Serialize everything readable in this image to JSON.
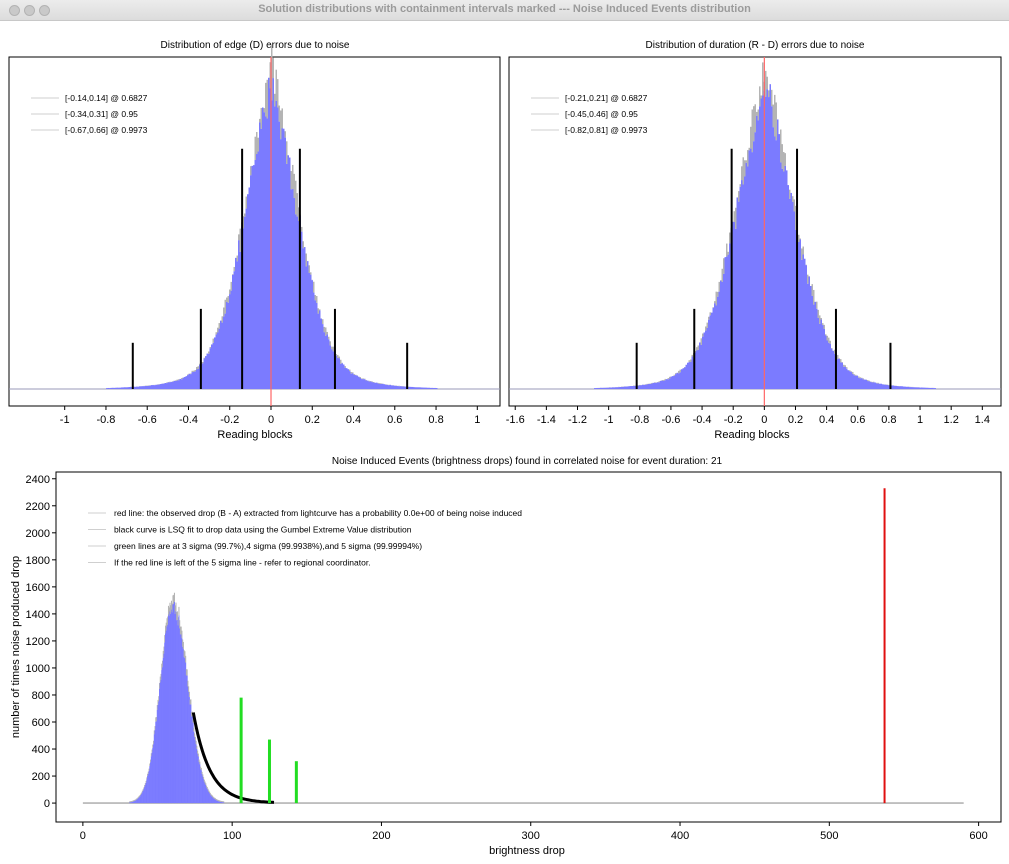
{
  "window": {
    "title": "Solution distributions with containment intervals marked --- Noise Induced Events distribution"
  },
  "colors": {
    "hist_fill": "#7b7bff",
    "hist_outline": "#b4b4b4",
    "zero_line": "#ff6666",
    "interval_line": "#000000",
    "observed_line": "#e01010",
    "sigma_line": "#22dd22",
    "fit_curve": "#000000"
  },
  "chart_data": [
    {
      "type": "bar",
      "title": "Distribution of edge (D) errors due to noise",
      "xlabel": "Reading blocks",
      "ylabel": "",
      "xlim": [
        -1.27,
        1.11
      ],
      "x_ticks": [
        -1,
        -0.8,
        -0.6,
        -0.4,
        -0.2,
        0,
        0.2,
        0.4,
        0.6,
        0.8,
        1
      ],
      "x_tick_labels": [
        "-1",
        "-0.8",
        "-0.6",
        "-0.4",
        "-0.2",
        "0",
        "0.2",
        "0.4",
        "0.6",
        "0.8",
        "1"
      ],
      "distribution": {
        "center": 0.0,
        "core_width": 0.14,
        "tail_decay": 0.16,
        "peak": 1.0
      },
      "zero_line_x": 0,
      "intervals": [
        {
          "lower": -0.14,
          "upper": 0.14,
          "height": 0.78
        },
        {
          "lower": -0.34,
          "upper": 0.31,
          "height": 0.26
        },
        {
          "lower": -0.67,
          "upper": 0.66,
          "height": 0.15
        }
      ],
      "legend": {
        "placement": "top-left",
        "entries": [
          "[-0.14,0.14] @ 0.6827",
          "[-0.34,0.31] @ 0.95",
          "[-0.67,0.66] @ 0.9973"
        ]
      }
    },
    {
      "type": "bar",
      "title": "Distribution of duration (R - D) errors due to noise",
      "xlabel": "Reading blocks",
      "ylabel": "",
      "xlim": [
        -1.64,
        1.52
      ],
      "x_ticks": [
        -1.6,
        -1.4,
        -1.2,
        -1,
        -0.8,
        -0.6,
        -0.4,
        -0.2,
        0,
        0.2,
        0.4,
        0.6,
        0.8,
        1,
        1.2,
        1.4
      ],
      "x_tick_labels": [
        "-1.6",
        "-1.4",
        "-1.2",
        "-1",
        "-0.8",
        "-0.6",
        "-0.4",
        "-0.2",
        "0",
        "0.2",
        "0.4",
        "0.6",
        "0.8",
        "1",
        "1.2",
        "1.4"
      ],
      "distribution": {
        "center": 0.0,
        "core_width": 0.21,
        "tail_decay": 0.22,
        "peak": 1.0
      },
      "zero_line_x": 0,
      "intervals": [
        {
          "lower": -0.21,
          "upper": 0.21,
          "height": 0.78
        },
        {
          "lower": -0.45,
          "upper": 0.46,
          "height": 0.26
        },
        {
          "lower": -0.82,
          "upper": 0.81,
          "height": 0.15
        }
      ],
      "legend": {
        "placement": "top-left",
        "entries": [
          "[-0.21,0.21] @ 0.6827",
          "[-0.45,0.46] @ 0.95",
          "[-0.82,0.81] @ 0.9973"
        ]
      }
    },
    {
      "type": "bar",
      "title": "Noise Induced Events (brightness drops) found in correlated noise for event duration: 21",
      "xlabel": "brightness drop",
      "ylabel": "number of times noise produced drop",
      "xlim": [
        -18,
        615
      ],
      "ylim": [
        -140,
        2450
      ],
      "x_ticks": [
        0,
        100,
        200,
        300,
        400,
        500,
        600
      ],
      "x_tick_labels": [
        "0",
        "100",
        "200",
        "300",
        "400",
        "500",
        "600"
      ],
      "y_ticks": [
        0,
        200,
        400,
        600,
        800,
        1000,
        1200,
        1400,
        1600,
        1800,
        2000,
        2200,
        2400
      ],
      "y_tick_labels": [
        "0",
        "200",
        "400",
        "600",
        "800",
        "1000",
        "1200",
        "1400",
        "1600",
        "1800",
        "2000",
        "2200",
        "2400"
      ],
      "histogram": {
        "x_start": 25,
        "x_end": 95,
        "mode": 60,
        "peak": 1450
      },
      "baseline_x_range": [
        0,
        590
      ],
      "fit_curve": {
        "x_start": 74,
        "x_end": 128,
        "y_start": 670,
        "decay": 11
      },
      "sigma_lines": [
        {
          "label": "3 sigma",
          "x": 106,
          "height": 780
        },
        {
          "label": "4 sigma",
          "x": 125,
          "height": 470
        },
        {
          "label": "5 sigma",
          "x": 143,
          "height": 310
        }
      ],
      "observed_drop": {
        "x": 537,
        "height": 2330
      },
      "legend": {
        "placement": "top-left",
        "entries": [
          "red line: the observed drop (B - A) extracted from lightcurve has a probability 0.0e+00 of being noise induced",
          "black curve is LSQ fit to drop data using the Gumbel Extreme Value distribution",
          "green lines are at 3 sigma (99.7%),4 sigma (99.9938%),and 5 sigma (99.99994%)",
          "If the red line is left of the 5 sigma line - refer to regional coordinator."
        ]
      }
    }
  ]
}
